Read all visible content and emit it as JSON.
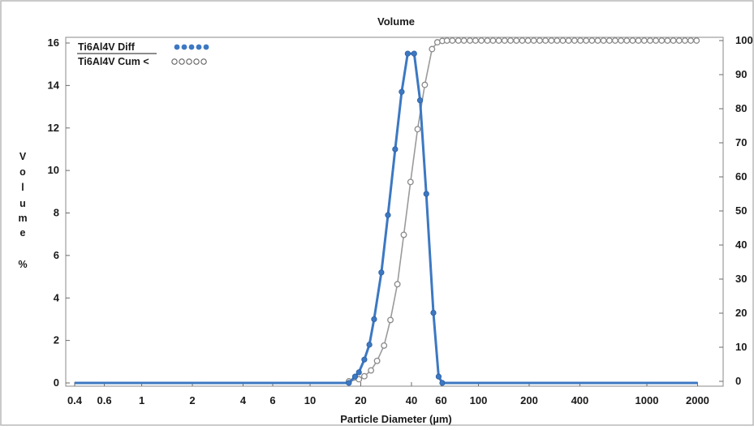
{
  "chart_data": {
    "type": "line",
    "title": "Volume",
    "xlabel": "Particle Diameter (µm)",
    "ylabel": "Volume %",
    "ylabel_chars": [
      "V",
      "o",
      "l",
      "u",
      "m",
      "e",
      "%"
    ],
    "x_scale": "log",
    "x_ticks": [
      0.4,
      0.6,
      1,
      2,
      4,
      6,
      10,
      20,
      40,
      60,
      100,
      200,
      400,
      1000,
      2000
    ],
    "x_tick_labels": [
      "0.4",
      "0.6",
      "1",
      "2",
      "4",
      "6",
      "10",
      "20",
      "40",
      "60",
      "100",
      "200",
      "400",
      "1000",
      "2000"
    ],
    "y_left_range": [
      0,
      16
    ],
    "y_left_ticks": [
      0,
      2,
      4,
      6,
      8,
      10,
      12,
      14,
      16
    ],
    "y_left_tick_labels": [
      "0",
      "2",
      "4",
      "6",
      "8",
      "10",
      "12",
      "14",
      "16"
    ],
    "y_right_range": [
      0,
      100
    ],
    "y_right_ticks": [
      0,
      10,
      20,
      30,
      40,
      50,
      60,
      70,
      80,
      90,
      100
    ],
    "y_right_tick_labels": [
      "0",
      "10",
      "20",
      "30",
      "40",
      "50",
      "60",
      "70",
      "80",
      "90",
      "100"
    ],
    "grid": false,
    "legend_position": "top-left",
    "series": [
      {
        "name": "Ti6Al4V Diff",
        "axis": "left",
        "color": "#3d78c2",
        "marker": "filled-circle",
        "points": [
          [
            0.4,
            0
          ],
          [
            17,
            0
          ],
          [
            18.5,
            0.3
          ],
          [
            19.5,
            0.5
          ],
          [
            21,
            1.1
          ],
          [
            22.5,
            1.8
          ],
          [
            24,
            3.0
          ],
          [
            26.5,
            5.2
          ],
          [
            29,
            7.9
          ],
          [
            32,
            11.0
          ],
          [
            35,
            13.7
          ],
          [
            38,
            15.5
          ],
          [
            41.5,
            15.5
          ],
          [
            45,
            13.3
          ],
          [
            49,
            8.9
          ],
          [
            54,
            3.3
          ],
          [
            58,
            0.3
          ],
          [
            61,
            0
          ],
          [
            2000,
            0
          ]
        ]
      },
      {
        "name": "Ti6Al4V Cum <",
        "axis": "right",
        "color": "#9a9a9a",
        "marker": "open-circle",
        "points": [
          [
            17,
            0
          ],
          [
            19.5,
            0.6
          ],
          [
            21,
            1.5
          ],
          [
            23,
            3.2
          ],
          [
            25,
            6.0
          ],
          [
            27.5,
            10.5
          ],
          [
            30,
            18.0
          ],
          [
            33,
            28.5
          ],
          [
            36,
            43.0
          ],
          [
            39.5,
            58.5
          ],
          [
            43.5,
            74.0
          ],
          [
            48,
            87.0
          ],
          [
            53,
            97.5
          ],
          [
            57,
            99.5
          ],
          [
            61,
            99.9
          ],
          [
            65,
            100
          ],
          [
            70,
            100
          ],
          [
            76,
            100
          ],
          [
            82,
            100
          ],
          [
            89,
            100
          ],
          [
            96,
            100
          ],
          [
            104,
            100
          ],
          [
            113,
            100
          ],
          [
            122,
            100
          ],
          [
            132,
            100
          ],
          [
            143,
            100
          ],
          [
            155,
            100
          ],
          [
            168,
            100
          ],
          [
            182,
            100
          ],
          [
            197,
            100
          ],
          [
            213,
            100
          ],
          [
            231,
            100
          ],
          [
            250,
            100
          ],
          [
            271,
            100
          ],
          [
            293,
            100
          ],
          [
            317,
            100
          ],
          [
            343,
            100
          ],
          [
            372,
            100
          ],
          [
            403,
            100
          ],
          [
            436,
            100
          ],
          [
            472,
            100
          ],
          [
            511,
            100
          ],
          [
            553,
            100
          ],
          [
            599,
            100
          ],
          [
            648,
            100
          ],
          [
            702,
            100
          ],
          [
            760,
            100
          ],
          [
            823,
            100
          ],
          [
            891,
            100
          ],
          [
            965,
            100
          ],
          [
            1045,
            100
          ],
          [
            1131,
            100
          ],
          [
            1225,
            100
          ],
          [
            1326,
            100
          ],
          [
            1436,
            100
          ],
          [
            1555,
            100
          ],
          [
            1683,
            100
          ],
          [
            1822,
            100
          ],
          [
            1973,
            100
          ]
        ]
      }
    ]
  }
}
